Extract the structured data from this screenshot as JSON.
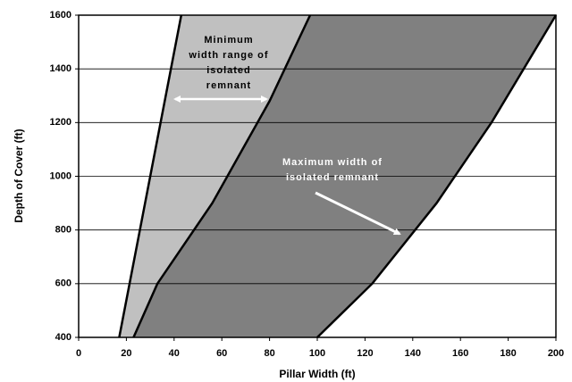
{
  "chart_data": {
    "type": "area",
    "x_label": "Pillar Width (ft)",
    "y_label": "Depth of Cover (ft)",
    "xlim": [
      0,
      200
    ],
    "xticks": [
      0,
      20,
      40,
      60,
      80,
      100,
      120,
      140,
      160,
      180,
      200
    ],
    "ylim": [
      400,
      1600
    ],
    "yticks": [
      400,
      600,
      800,
      1000,
      1200,
      1400,
      1600
    ],
    "grid": true,
    "series": [
      {
        "color": "#000000",
        "x": [
          17,
          43
        ],
        "y": [
          400,
          1600
        ]
      },
      {
        "color": "#000000",
        "fill": "#c0c0c0",
        "x": [
          23,
          33,
          56,
          80,
          97
        ],
        "y": [
          400,
          600,
          900,
          1280,
          1600
        ]
      },
      {
        "color": "#000000",
        "fill": "#808080",
        "x": [
          100,
          123,
          150,
          173,
          200
        ],
        "y": [
          400,
          600,
          900,
          1200,
          1600
        ]
      }
    ],
    "annotations": [
      {
        "lines": [
          "Minimum",
          "width range of",
          "isolated",
          "remnant"
        ]
      },
      {
        "lines": [
          "Maximum width of",
          "isolated remnant"
        ]
      }
    ]
  }
}
